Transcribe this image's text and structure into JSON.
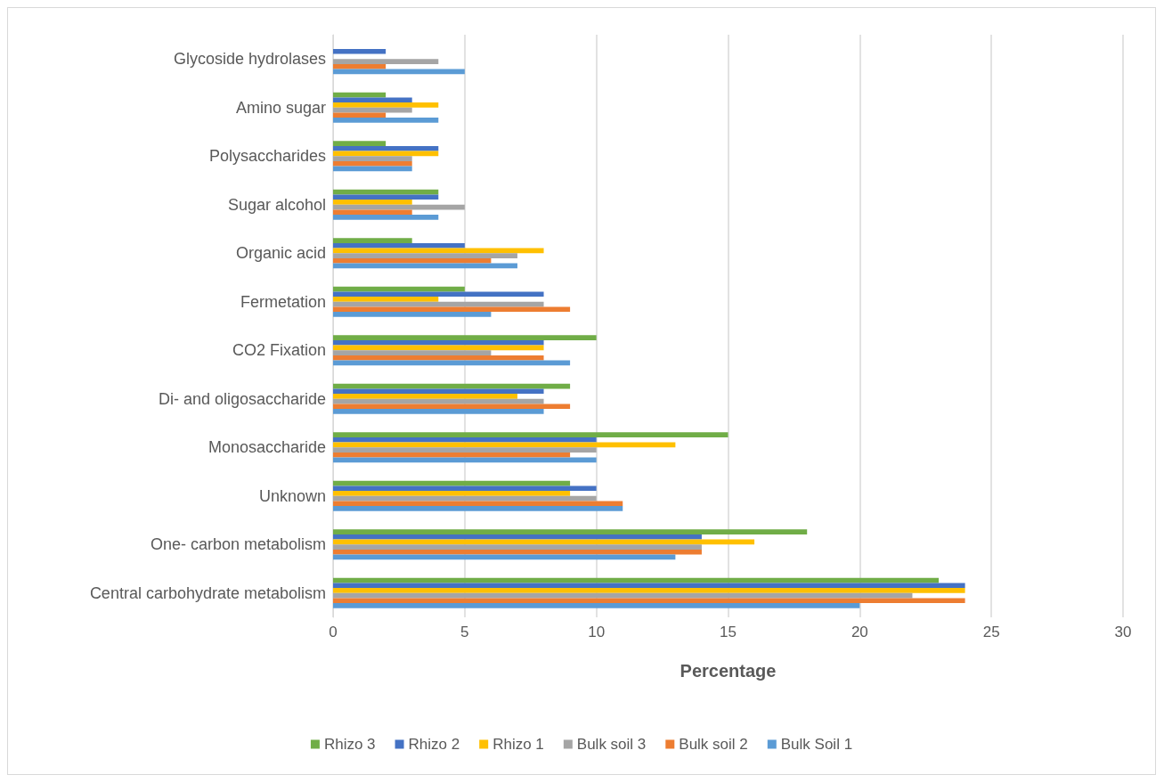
{
  "chart_data": {
    "type": "bar",
    "orientation": "horizontal",
    "xlabel": "Percentage",
    "categories": [
      "Glycoside hydrolases",
      "Amino sugar",
      "Polysaccharides",
      "Sugar alcohol",
      "Organic acid",
      "Fermetation",
      "CO2 Fixation",
      "Di- and oligosaccharide",
      "Monosaccharide",
      "Unknown",
      "One- carbon metabolism",
      "Central carbohydrate metabolism"
    ],
    "series": [
      {
        "name": "Rhizo 3",
        "color": "#70ad47",
        "values": [
          0,
          2,
          2,
          4,
          3,
          5,
          10,
          9,
          15,
          9,
          18,
          23
        ]
      },
      {
        "name": "Rhizo 2",
        "color": "#4472c4",
        "values": [
          2,
          3,
          4,
          4,
          5,
          8,
          8,
          8,
          10,
          10,
          14,
          24
        ]
      },
      {
        "name": "Rhizo 1",
        "color": "#ffc000",
        "values": [
          0,
          4,
          4,
          3,
          8,
          4,
          8,
          7,
          13,
          9,
          16,
          24
        ]
      },
      {
        "name": "Bulk soil 3",
        "color": "#a5a5a5",
        "values": [
          4,
          3,
          3,
          5,
          7,
          8,
          6,
          8,
          10,
          10,
          14,
          22
        ]
      },
      {
        "name": "Bulk soil 2",
        "color": "#ed7d31",
        "values": [
          2,
          2,
          3,
          3,
          6,
          9,
          8,
          9,
          9,
          11,
          14,
          24
        ]
      },
      {
        "name": "Bulk Soil 1",
        "color": "#5b9bd5",
        "values": [
          5,
          4,
          3,
          4,
          7,
          6,
          9,
          8,
          10,
          11,
          13,
          20
        ]
      }
    ],
    "xlim": [
      0,
      30
    ],
    "xticks": [
      0,
      5,
      10,
      15,
      20,
      25,
      30
    ],
    "grid": "x",
    "legend": "bottom"
  }
}
